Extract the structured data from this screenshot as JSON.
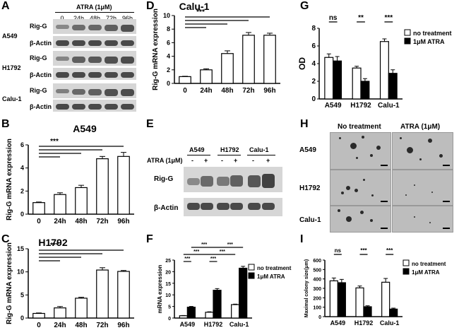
{
  "panel_letters": {
    "A": "A",
    "B": "B",
    "C": "C",
    "D": "D",
    "E": "E",
    "F": "F",
    "G": "G",
    "H": "H",
    "I": "I"
  },
  "panelA": {
    "treatment_label": "ATRA (1μM)",
    "timepoints": [
      "0",
      "24h",
      "48h",
      "72h",
      "96h"
    ],
    "cell_lines": [
      {
        "name": "A549",
        "rows": [
          "Rig-G",
          "β-Actin"
        ],
        "rig_g_intensity": [
          0.25,
          0.55,
          0.6,
          0.7,
          0.85
        ]
      },
      {
        "name": "H1792",
        "rows": [
          "Rig-G",
          "β-Actin"
        ],
        "rig_g_intensity": [
          0.3,
          0.7,
          0.75,
          0.85,
          0.9
        ]
      },
      {
        "name": "Calu-1",
        "rows": [
          "Rig-G",
          "β-Actin"
        ],
        "rig_g_intensity": [
          0.35,
          0.6,
          0.7,
          0.85,
          0.9
        ]
      }
    ]
  },
  "panelE": {
    "cell_lines": [
      "A549",
      "H1792",
      "Calu-1"
    ],
    "atra_label": "ATRA (1μM)",
    "signs": [
      "-",
      "+",
      "-",
      "+",
      "-",
      "+"
    ],
    "rows": [
      "Rig-G",
      "β-Actin"
    ],
    "rig_g_intensity": [
      0.3,
      0.6,
      0.45,
      0.7,
      0.8,
      1.0
    ]
  },
  "panelH": {
    "col_headers": [
      "No treatment",
      "ATRA (1μM)"
    ],
    "row_labels": [
      "A549",
      "H1792",
      "Calu-1"
    ]
  },
  "chart_data": [
    {
      "id": "B",
      "type": "bar",
      "title": "A549",
      "ylabel": "Rig-G mRNA expression",
      "categories": [
        "0",
        "24h",
        "48h",
        "72h",
        "96h"
      ],
      "values": [
        1,
        1.7,
        2.3,
        4.8,
        5.0
      ],
      "errors": [
        0.05,
        0.15,
        0.2,
        0.2,
        0.35
      ],
      "ylim": [
        0,
        6
      ],
      "yticks": [
        0,
        2,
        4,
        6
      ],
      "significance": "***"
    },
    {
      "id": "C",
      "type": "bar",
      "title": "H1792",
      "ylabel": "Rig-G mRNA expression",
      "categories": [
        "0",
        "24h",
        "48h",
        "72h",
        "96h"
      ],
      "values": [
        1,
        2.2,
        4.3,
        10.4,
        10.1
      ],
      "errors": [
        0.1,
        0.3,
        0.2,
        0.5,
        0.2
      ],
      "ylim": [
        0,
        15
      ],
      "yticks": [
        0,
        5,
        10,
        15
      ],
      "significance": "***"
    },
    {
      "id": "D",
      "type": "bar",
      "title": "Calu-1",
      "ylabel": "Rig-G mRNA expression",
      "categories": [
        "0",
        "24h",
        "48h",
        "72h",
        "96h"
      ],
      "values": [
        1,
        2.0,
        4.4,
        7.1,
        7.1
      ],
      "errors": [
        0.05,
        0.15,
        0.4,
        0.4,
        0.3
      ],
      "ylim": [
        0,
        10
      ],
      "yticks": [
        0,
        2,
        4,
        6,
        8,
        10
      ],
      "significance": "***"
    },
    {
      "id": "F",
      "type": "bar",
      "title": "",
      "ylabel": "mRNA expression",
      "categories": [
        "A549",
        "H1792",
        "Calu-1"
      ],
      "series": [
        {
          "name": "no treatment",
          "values": [
            1,
            2.5,
            5.8
          ],
          "errors": [
            0.1,
            0.2,
            0.2
          ]
        },
        {
          "name": "1μM ATRA",
          "values": [
            4.7,
            12.0,
            21.5
          ],
          "errors": [
            0.3,
            0.7,
            0.8
          ]
        }
      ],
      "ylim": [
        0,
        25
      ],
      "yticks": [
        0,
        5,
        10,
        15,
        20,
        25
      ],
      "significance": [
        "***",
        "***",
        "***",
        "***",
        "***",
        "***"
      ],
      "legend": "top-right"
    },
    {
      "id": "G",
      "type": "bar",
      "title": "",
      "ylabel": "OD",
      "categories": [
        "A549",
        "H1792",
        "Calu-1"
      ],
      "series": [
        {
          "name": "no treatment",
          "values": [
            4.7,
            3.5,
            6.5
          ],
          "errors": [
            0.4,
            0.2,
            0.3
          ]
        },
        {
          "name": "1μM ATRA",
          "values": [
            4.3,
            2.0,
            2.9
          ],
          "errors": [
            0.5,
            0.3,
            0.4
          ]
        }
      ],
      "ylim": [
        0,
        8
      ],
      "yticks": [
        0,
        2,
        4,
        6,
        8
      ],
      "significance": [
        "ns",
        "**",
        "***"
      ],
      "legend": "top-right"
    },
    {
      "id": "I",
      "type": "bar",
      "title": "",
      "ylabel": "Maximal colony size(μm)",
      "categories": [
        "A549",
        "H1792",
        "Calu-1"
      ],
      "series": [
        {
          "name": "no treatment",
          "values": [
            380,
            305,
            365
          ],
          "errors": [
            30,
            20,
            40
          ]
        },
        {
          "name": "1μM ATRA",
          "values": [
            360,
            105,
            80
          ],
          "errors": [
            35,
            10,
            10
          ]
        }
      ],
      "ylim": [
        0,
        600
      ],
      "yticks": [
        0,
        100,
        200,
        300,
        400,
        500,
        600
      ],
      "significance": [
        "ns",
        "***",
        "***"
      ],
      "legend": "top-right"
    }
  ]
}
